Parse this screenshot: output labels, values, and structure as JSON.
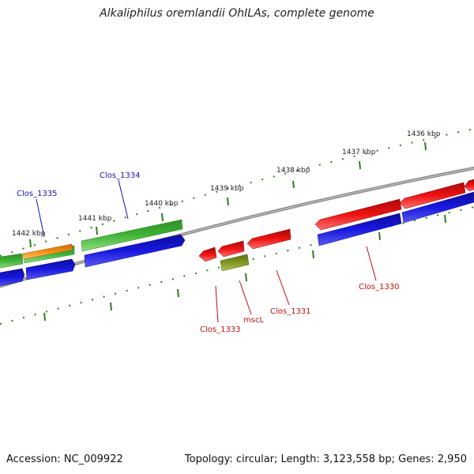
{
  "title": "Alkaliphilus oremlandii OhILAs, complete genome",
  "footer": {
    "accession": "Accession: NC_009922",
    "summary": "Topology: circular; Length: 3,123,558 bp; Genes: 2,950"
  },
  "colors": {
    "backbone": "#8a8a8a",
    "ruler": "#2f7d1f",
    "plus_cds": "#3cb034",
    "plus_strand": "#1515d8",
    "minus_strand": "#e30f0f",
    "rna": "#f08c0f",
    "olive": "#7f9620",
    "label_plus": "#1515b0",
    "label_minus": "#c01010"
  },
  "kbp_labels": [
    "1436 kbp",
    "1437 kbp",
    "1438 kbp",
    "1439 kbp",
    "1440 kbp",
    "1441 kbp",
    "1442 kbp"
  ],
  "gene_labels": [
    "Clos_1335",
    "Clos_1334",
    "Clos_1333",
    "mscL",
    "Clos_1331",
    "Clos_1330"
  ]
}
